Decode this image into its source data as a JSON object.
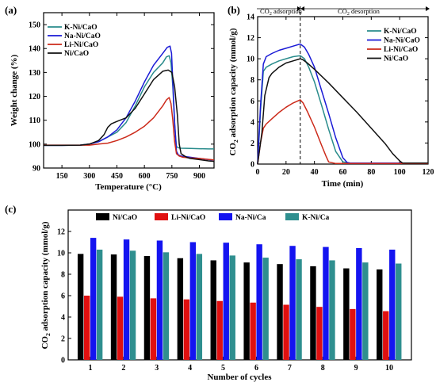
{
  "chart_data": [
    {
      "panel": "(a)",
      "type": "line",
      "title": "",
      "xlabel": "Temperature (°C)",
      "ylabel": "Weight change (%)",
      "xlim": [
        50,
        980
      ],
      "ylim": [
        90,
        155
      ],
      "xticks": [
        150,
        300,
        450,
        600,
        750,
        900
      ],
      "yticks": [
        90,
        100,
        110,
        120,
        130,
        140,
        150
      ],
      "legend_position": "top-left",
      "series": [
        {
          "name": "K-Ni/CaO",
          "color": "#2a8c8c",
          "x": [
            50,
            150,
            250,
            300,
            350,
            400,
            450,
            500,
            550,
            600,
            650,
            700,
            720,
            735,
            745,
            755,
            765,
            775,
            785,
            800,
            850,
            900,
            950,
            980
          ],
          "y": [
            99.5,
            99.5,
            99.6,
            100,
            101,
            103,
            105,
            109,
            116,
            124,
            130,
            134,
            136.5,
            137,
            134,
            124,
            108,
            99,
            98.5,
            98.3,
            98.2,
            98.1,
            98.0,
            98.0
          ]
        },
        {
          "name": "Na-Ni/CaO",
          "color": "#1a1ad6",
          "x": [
            50,
            150,
            250,
            300,
            350,
            400,
            450,
            500,
            550,
            600,
            650,
            700,
            725,
            740,
            748,
            755,
            765,
            775,
            785,
            800,
            850,
            900,
            950,
            980
          ],
          "y": [
            99.5,
            99.5,
            99.6,
            100,
            101,
            103,
            106,
            111,
            118,
            126,
            133,
            138,
            140.5,
            141,
            138,
            126,
            109,
            97,
            95.5,
            95,
            94.5,
            94,
            93.5,
            93.3
          ]
        },
        {
          "name": "Li-Ni/CaO",
          "color": "#cc2a1a",
          "x": [
            50,
            150,
            250,
            300,
            350,
            400,
            450,
            500,
            550,
            600,
            650,
            700,
            720,
            735,
            745,
            755,
            765,
            775,
            790,
            810,
            850,
            900,
            950,
            980
          ],
          "y": [
            99.6,
            99.6,
            99.6,
            99.6,
            100,
            100.4,
            101.5,
            103,
            105,
            107.5,
            111,
            116,
            118.5,
            119.5,
            117,
            110,
            101,
            96,
            95,
            94.5,
            94.2,
            94,
            93.6,
            93.4
          ]
        },
        {
          "name": "Ni/CaO",
          "color": "#111111",
          "x": [
            50,
            150,
            250,
            300,
            350,
            380,
            400,
            420,
            450,
            500,
            550,
            600,
            650,
            700,
            730,
            750,
            765,
            780,
            790,
            800,
            830,
            850,
            900,
            950,
            980
          ],
          "y": [
            99.5,
            99.5,
            99.6,
            100,
            101.5,
            104,
            107,
            108.5,
            109.5,
            111,
            115,
            121,
            127,
            130.5,
            131,
            130,
            124,
            112,
            100,
            96,
            94.5,
            94,
            93.5,
            93,
            92.8
          ]
        }
      ]
    },
    {
      "panel": "(b)",
      "type": "line",
      "title": "",
      "xlabel": "Time (min)",
      "ylabel": "CO2 adsorption capacity (mmol/g)",
      "xlim": [
        0,
        120
      ],
      "ylim": [
        0,
        14
      ],
      "xticks": [
        0,
        20,
        40,
        60,
        80,
        100,
        120
      ],
      "yticks": [
        0,
        2,
        4,
        6,
        8,
        10,
        12,
        14
      ],
      "legend_position": "top-right",
      "annotations": {
        "divider_x": 30,
        "left_text": "CO2 adsorption",
        "right_text": "CO2 desorption"
      },
      "series": [
        {
          "name": "K-Ni/CaO",
          "color": "#2a8c8c",
          "x": [
            0,
            2,
            4,
            6,
            10,
            15,
            20,
            25,
            30,
            33,
            36,
            40,
            45,
            50,
            55,
            60,
            65,
            70,
            80,
            100,
            120
          ],
          "y": [
            0,
            5,
            8.8,
            9.2,
            9.5,
            9.8,
            10,
            10.2,
            10.3,
            10,
            9.2,
            7.8,
            5.6,
            3.3,
            1.2,
            0.2,
            0.1,
            0.1,
            0.1,
            0.1,
            0.1
          ]
        },
        {
          "name": "Na-Ni/CaO",
          "color": "#1a1ad6",
          "x": [
            0,
            2,
            4,
            6,
            10,
            15,
            20,
            25,
            30,
            33,
            36,
            40,
            45,
            50,
            55,
            60,
            63,
            65,
            70,
            80,
            100,
            120
          ],
          "y": [
            0,
            5.5,
            9.5,
            10.2,
            10.5,
            10.8,
            11,
            11.2,
            11.4,
            11.1,
            10.4,
            9.2,
            7,
            4.8,
            2.5,
            0.6,
            0.15,
            0.1,
            0.1,
            0.1,
            0.1,
            0.1
          ]
        },
        {
          "name": "Li-Ni/CaO",
          "color": "#cc2a1a",
          "x": [
            0,
            2,
            4,
            6,
            10,
            15,
            20,
            25,
            30,
            32,
            35,
            40,
            45,
            48,
            50,
            55,
            60,
            80,
            100,
            120
          ],
          "y": [
            0,
            2,
            3.4,
            3.8,
            4.3,
            4.9,
            5.4,
            5.8,
            6.1,
            5.8,
            5,
            3.5,
            1.8,
            0.8,
            0.2,
            0.05,
            0.05,
            0.05,
            0.05,
            0.05
          ]
        },
        {
          "name": "Ni/CaO",
          "color": "#111111",
          "x": [
            0,
            3,
            5,
            8,
            10,
            15,
            20,
            25,
            30,
            32,
            35,
            40,
            50,
            60,
            70,
            80,
            90,
            95,
            100,
            102,
            110,
            120
          ],
          "y": [
            0,
            3,
            6.5,
            8.2,
            8.6,
            9.2,
            9.6,
            9.8,
            10,
            9.9,
            9.6,
            9,
            7.7,
            6.3,
            4.9,
            3.4,
            1.9,
            1,
            0.3,
            0.1,
            0.1,
            0.1
          ]
        }
      ]
    },
    {
      "panel": "(c)",
      "type": "bar",
      "title": "",
      "xlabel": "Number of cycles",
      "ylabel": "CO2 adsorption capacity (mmol/g)",
      "ylim": [
        0,
        14
      ],
      "yticks": [
        0,
        2,
        4,
        6,
        8,
        10,
        12
      ],
      "categories": [
        "1",
        "2",
        "3",
        "4",
        "5",
        "6",
        "7",
        "8",
        "9",
        "10"
      ],
      "legend_position": "top",
      "series": [
        {
          "name": "Ni/CaO",
          "color": "#000000",
          "values": [
            9.9,
            9.85,
            9.7,
            9.5,
            9.3,
            9.1,
            8.95,
            8.75,
            8.55,
            8.45
          ]
        },
        {
          "name": "Li-Ni/CaO",
          "color": "#e01010",
          "values": [
            6.0,
            5.9,
            5.75,
            5.65,
            5.5,
            5.35,
            5.15,
            4.95,
            4.75,
            4.55
          ]
        },
        {
          "name": "Na-Ni/Ca",
          "color": "#1414f0",
          "values": [
            11.4,
            11.25,
            11.15,
            11.0,
            10.95,
            10.8,
            10.65,
            10.55,
            10.45,
            10.3
          ]
        },
        {
          "name": "K-Ni/Ca",
          "color": "#2f8f8f",
          "values": [
            10.3,
            10.2,
            10.05,
            9.9,
            9.75,
            9.55,
            9.4,
            9.3,
            9.1,
            9.0
          ]
        }
      ]
    }
  ]
}
